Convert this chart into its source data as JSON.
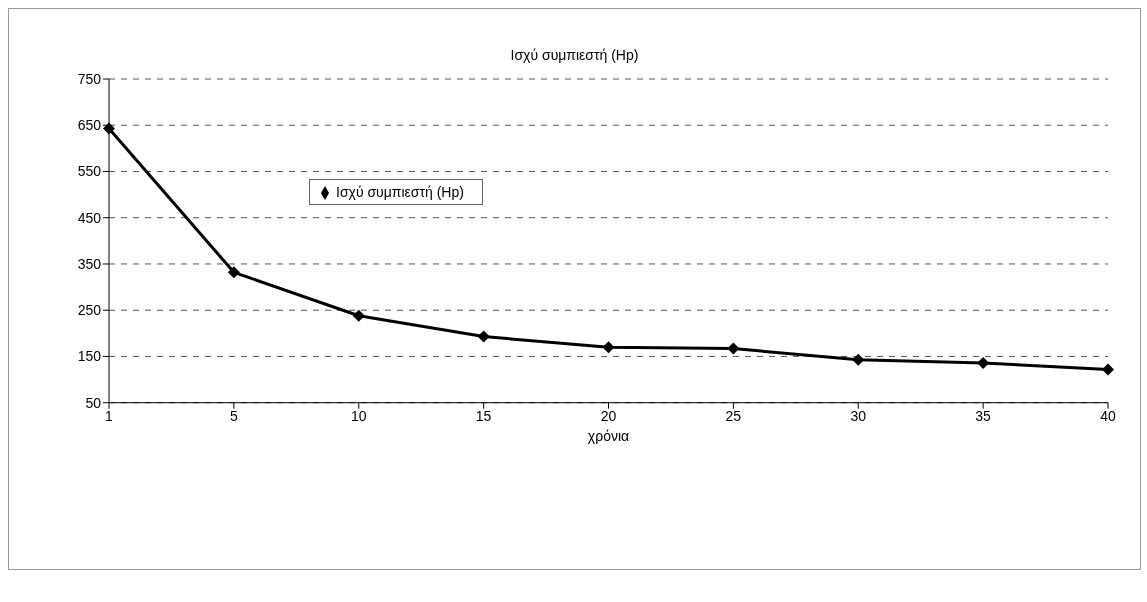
{
  "chart_data": {
    "type": "line",
    "title": "Ισχύ συμπιεστή (Hp)",
    "xlabel": "χρόνια",
    "categories": [
      "1",
      "5",
      "10",
      "15",
      "20",
      "25",
      "30",
      "35",
      "40"
    ],
    "series": [
      {
        "name": "Ισχύ συμπιεστή (Hp)",
        "color": "#000000",
        "values": [
          643,
          332,
          238,
          193,
          170,
          167,
          143,
          136,
          122
        ]
      }
    ],
    "ylim": [
      50,
      750
    ],
    "yticks": [
      50,
      150,
      250,
      350,
      450,
      550,
      650,
      750
    ],
    "grid": "y",
    "legend": "top left",
    "marker": "diamond",
    "line_style": "solid"
  }
}
